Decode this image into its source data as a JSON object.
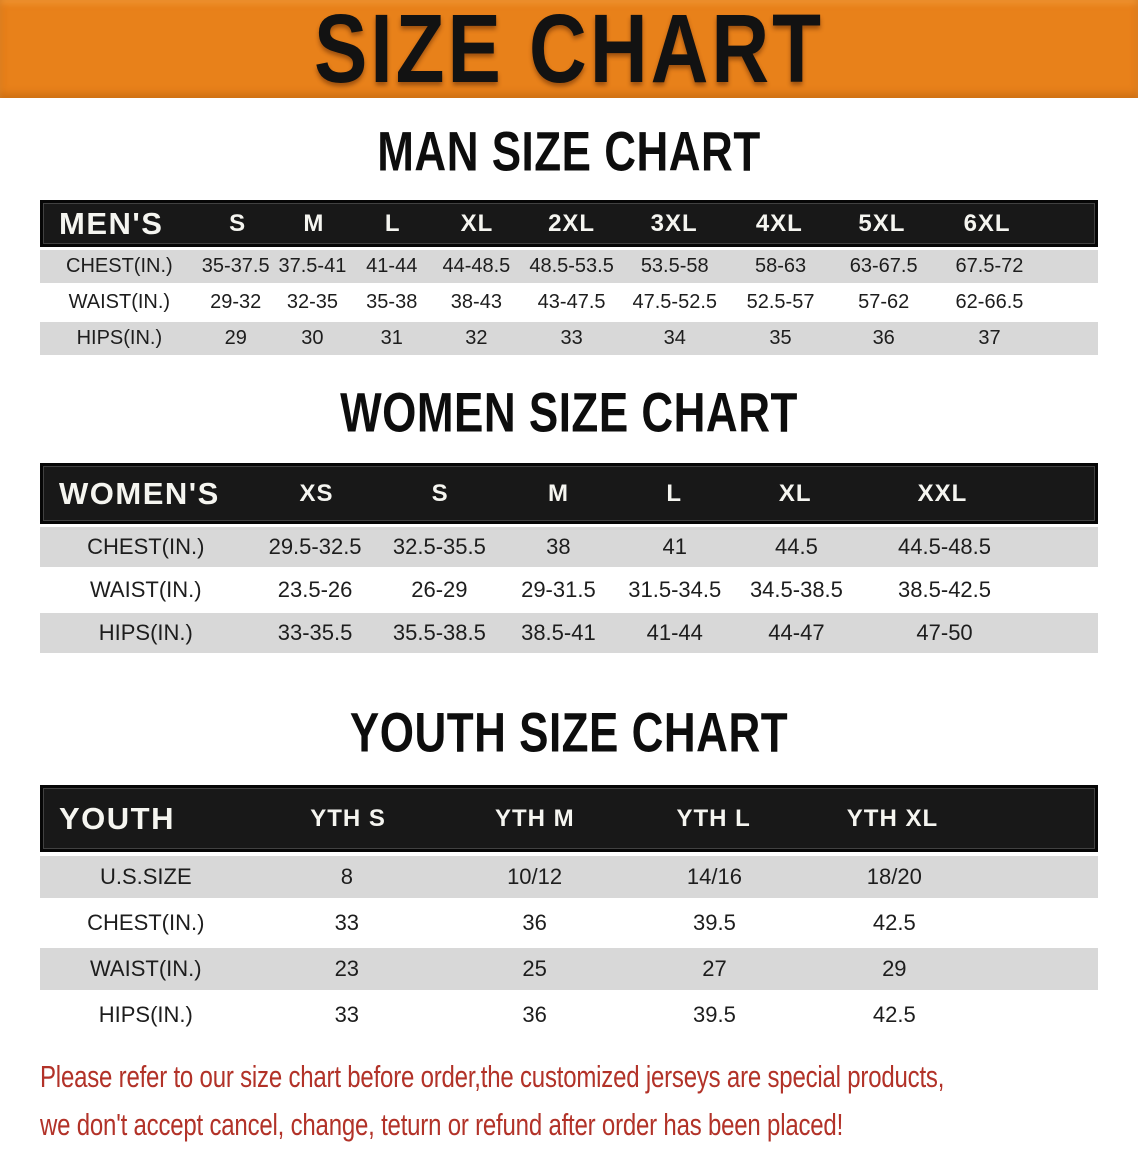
{
  "banner": {
    "title": "SIZE CHART"
  },
  "colors": {
    "banner_bg": "#e8811a",
    "table_header_bg": "#181818",
    "row_gray": "#d8d8d8",
    "footer_red": "#b23228"
  },
  "sections": [
    {
      "title": "MAN SIZE CHART",
      "table": {
        "header": [
          "MEN'S",
          "S",
          "M",
          "L",
          "XL",
          "2XL",
          "3XL",
          "4XL",
          "5XL",
          "6XL"
        ],
        "rows": [
          {
            "label": "CHEST(IN.)",
            "values": [
              "35-37.5",
              "37.5-41",
              "41-44",
              "44-48.5",
              "48.5-53.5",
              "53.5-58",
              "58-63",
              "63-67.5",
              "67.5-72"
            ]
          },
          {
            "label": "WAIST(IN.)",
            "values": [
              "29-32",
              "32-35",
              "35-38",
              "38-43",
              "43-47.5",
              "47.5-52.5",
              "52.5-57",
              "57-62",
              "62-66.5"
            ]
          },
          {
            "label": "HIPS(IN.)",
            "values": [
              "29",
              "30",
              "31",
              "32",
              "33",
              "34",
              "35",
              "36",
              "37"
            ]
          }
        ]
      }
    },
    {
      "title": "WOMEN SIZE CHART",
      "table": {
        "header": [
          "WOMEN'S",
          "XS",
          "S",
          "M",
          "L",
          "XL",
          "XXL"
        ],
        "rows": [
          {
            "label": "CHEST(IN.)",
            "values": [
              "29.5-32.5",
              "32.5-35.5",
              "38",
              "41",
              "44.5",
              "44.5-48.5"
            ]
          },
          {
            "label": "WAIST(IN.)",
            "values": [
              "23.5-26",
              "26-29",
              "29-31.5",
              "31.5-34.5",
              "34.5-38.5",
              "38.5-42.5"
            ]
          },
          {
            "label": "HIPS(IN.)",
            "values": [
              "33-35.5",
              "35.5-38.5",
              "38.5-41",
              "41-44",
              "44-47",
              "47-50"
            ]
          }
        ]
      }
    },
    {
      "title": "YOUTH SIZE CHART",
      "table": {
        "header": [
          "YOUTH",
          "YTH S",
          "YTH M",
          "YTH L",
          "YTH XL"
        ],
        "rows": [
          {
            "label": "U.S.SIZE",
            "values": [
              "8",
              "10/12",
              "14/16",
              "18/20"
            ]
          },
          {
            "label": "CHEST(IN.)",
            "values": [
              "33",
              "36",
              "39.5",
              "42.5"
            ]
          },
          {
            "label": "WAIST(IN.)",
            "values": [
              "23",
              "25",
              "27",
              "29"
            ]
          },
          {
            "label": "HIPS(IN.)",
            "values": [
              "33",
              "36",
              "39.5",
              "42.5"
            ]
          }
        ]
      }
    }
  ],
  "footer": {
    "line1": "Please refer to our size chart before order,the customized jerseys are special products,",
    "line2": "we don't accept cancel, change, teturn or refund after order has been placed!"
  }
}
